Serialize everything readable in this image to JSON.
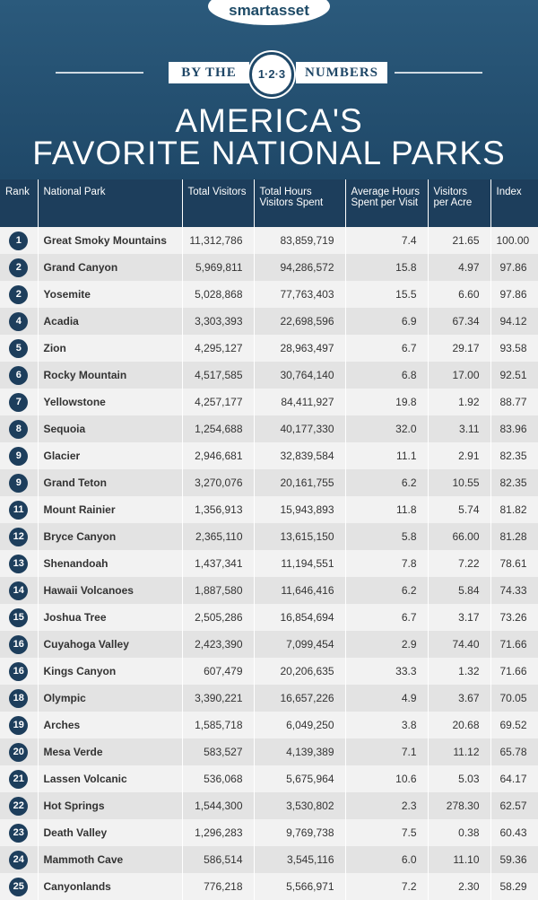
{
  "header": {
    "logo": "smartasset",
    "banner": {
      "left": "BY THE",
      "badge": "1·2·3",
      "right": "NUMBERS"
    },
    "title": [
      "AMERICA'S",
      "FAVORITE NATIONAL PARKS"
    ]
  },
  "table": {
    "columns": [
      "Rank",
      "National Park",
      "Total Visitors",
      "Total Hours Visitors Spent",
      "Average Hours Spent per Visit",
      "Visitors per Acre",
      "Index"
    ],
    "rows": [
      [
        "1",
        "Great Smoky Mountains",
        "11,312,786",
        "83,859,719",
        "7.4",
        "21.65",
        "100.00"
      ],
      [
        "2",
        "Grand Canyon",
        "5,969,811",
        "94,286,572",
        "15.8",
        "4.97",
        "97.86"
      ],
      [
        "2",
        "Yosemite",
        "5,028,868",
        "77,763,403",
        "15.5",
        "6.60",
        "97.86"
      ],
      [
        "4",
        "Acadia",
        "3,303,393",
        "22,698,596",
        "6.9",
        "67.34",
        "94.12"
      ],
      [
        "5",
        "Zion",
        "4,295,127",
        "28,963,497",
        "6.7",
        "29.17",
        "93.58"
      ],
      [
        "6",
        "Rocky Mountain",
        "4,517,585",
        "30,764,140",
        "6.8",
        "17.00",
        "92.51"
      ],
      [
        "7",
        "Yellowstone",
        "4,257,177",
        "84,411,927",
        "19.8",
        "1.92",
        "88.77"
      ],
      [
        "8",
        "Sequoia",
        "1,254,688",
        "40,177,330",
        "32.0",
        "3.11",
        "83.96"
      ],
      [
        "9",
        "Glacier",
        "2,946,681",
        "32,839,584",
        "11.1",
        "2.91",
        "82.35"
      ],
      [
        "9",
        "Grand Teton",
        "3,270,076",
        "20,161,755",
        "6.2",
        "10.55",
        "82.35"
      ],
      [
        "11",
        "Mount Rainier",
        "1,356,913",
        "15,943,893",
        "11.8",
        "5.74",
        "81.82"
      ],
      [
        "12",
        "Bryce Canyon",
        "2,365,110",
        "13,615,150",
        "5.8",
        "66.00",
        "81.28"
      ],
      [
        "13",
        "Shenandoah",
        "1,437,341",
        "11,194,551",
        "7.8",
        "7.22",
        "78.61"
      ],
      [
        "14",
        "Hawaii Volcanoes",
        "1,887,580",
        "11,646,416",
        "6.2",
        "5.84",
        "74.33"
      ],
      [
        "15",
        "Joshua Tree",
        "2,505,286",
        "16,854,694",
        "6.7",
        "3.17",
        "73.26"
      ],
      [
        "16",
        "Cuyahoga Valley",
        "2,423,390",
        "7,099,454",
        "2.9",
        "74.40",
        "71.66"
      ],
      [
        "16",
        "Kings Canyon",
        "607,479",
        "20,206,635",
        "33.3",
        "1.32",
        "71.66"
      ],
      [
        "18",
        "Olympic",
        "3,390,221",
        "16,657,226",
        "4.9",
        "3.67",
        "70.05"
      ],
      [
        "19",
        "Arches",
        "1,585,718",
        "6,049,250",
        "3.8",
        "20.68",
        "69.52"
      ],
      [
        "20",
        "Mesa Verde",
        "583,527",
        "4,139,389",
        "7.1",
        "11.12",
        "65.78"
      ],
      [
        "21",
        "Lassen Volcanic",
        "536,068",
        "5,675,964",
        "10.6",
        "5.03",
        "64.17"
      ],
      [
        "22",
        "Hot Springs",
        "1,544,300",
        "3,530,802",
        "2.3",
        "278.30",
        "62.57"
      ],
      [
        "23",
        "Death Valley",
        "1,296,283",
        "9,769,738",
        "7.5",
        "0.38",
        "60.43"
      ],
      [
        "24",
        "Mammoth Cave",
        "586,514",
        "3,545,116",
        "6.0",
        "11.10",
        "59.36"
      ],
      [
        "25",
        "Canyonlands",
        "776,218",
        "5,566,971",
        "7.2",
        "2.30",
        "58.29"
      ]
    ]
  }
}
